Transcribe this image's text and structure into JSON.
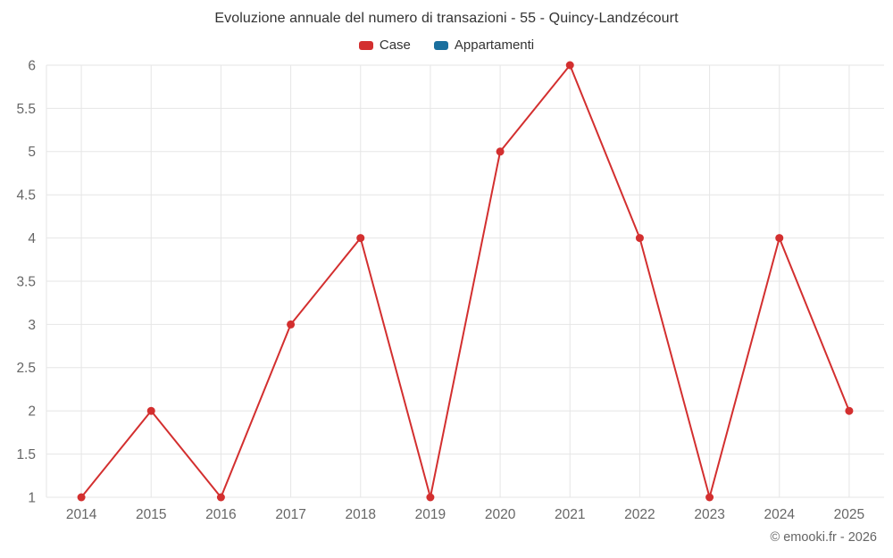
{
  "chart_data": {
    "type": "line",
    "title": "Evoluzione annuale del numero di transazioni - 55 - Quincy-Landzécourt",
    "categories": [
      "2014",
      "2015",
      "2016",
      "2017",
      "2018",
      "2019",
      "2020",
      "2021",
      "2022",
      "2023",
      "2024",
      "2025"
    ],
    "series": [
      {
        "name": "Case",
        "color": "#d32f2f",
        "values": [
          1,
          2,
          1,
          3,
          4,
          1,
          5,
          6,
          4,
          1,
          4,
          2
        ]
      },
      {
        "name": "Appartamenti",
        "color": "#1a6f9e",
        "values": []
      }
    ],
    "ylim": [
      1,
      6
    ],
    "ytick_step": 0.5,
    "grid": true,
    "legend_position": "top",
    "xlabel": "",
    "ylabel": ""
  },
  "footer": {
    "credit": "© emooki.fr - 2026"
  },
  "colors": {
    "grid": "#e6e6e6",
    "axis_label": "#666666",
    "title": "#333333"
  }
}
